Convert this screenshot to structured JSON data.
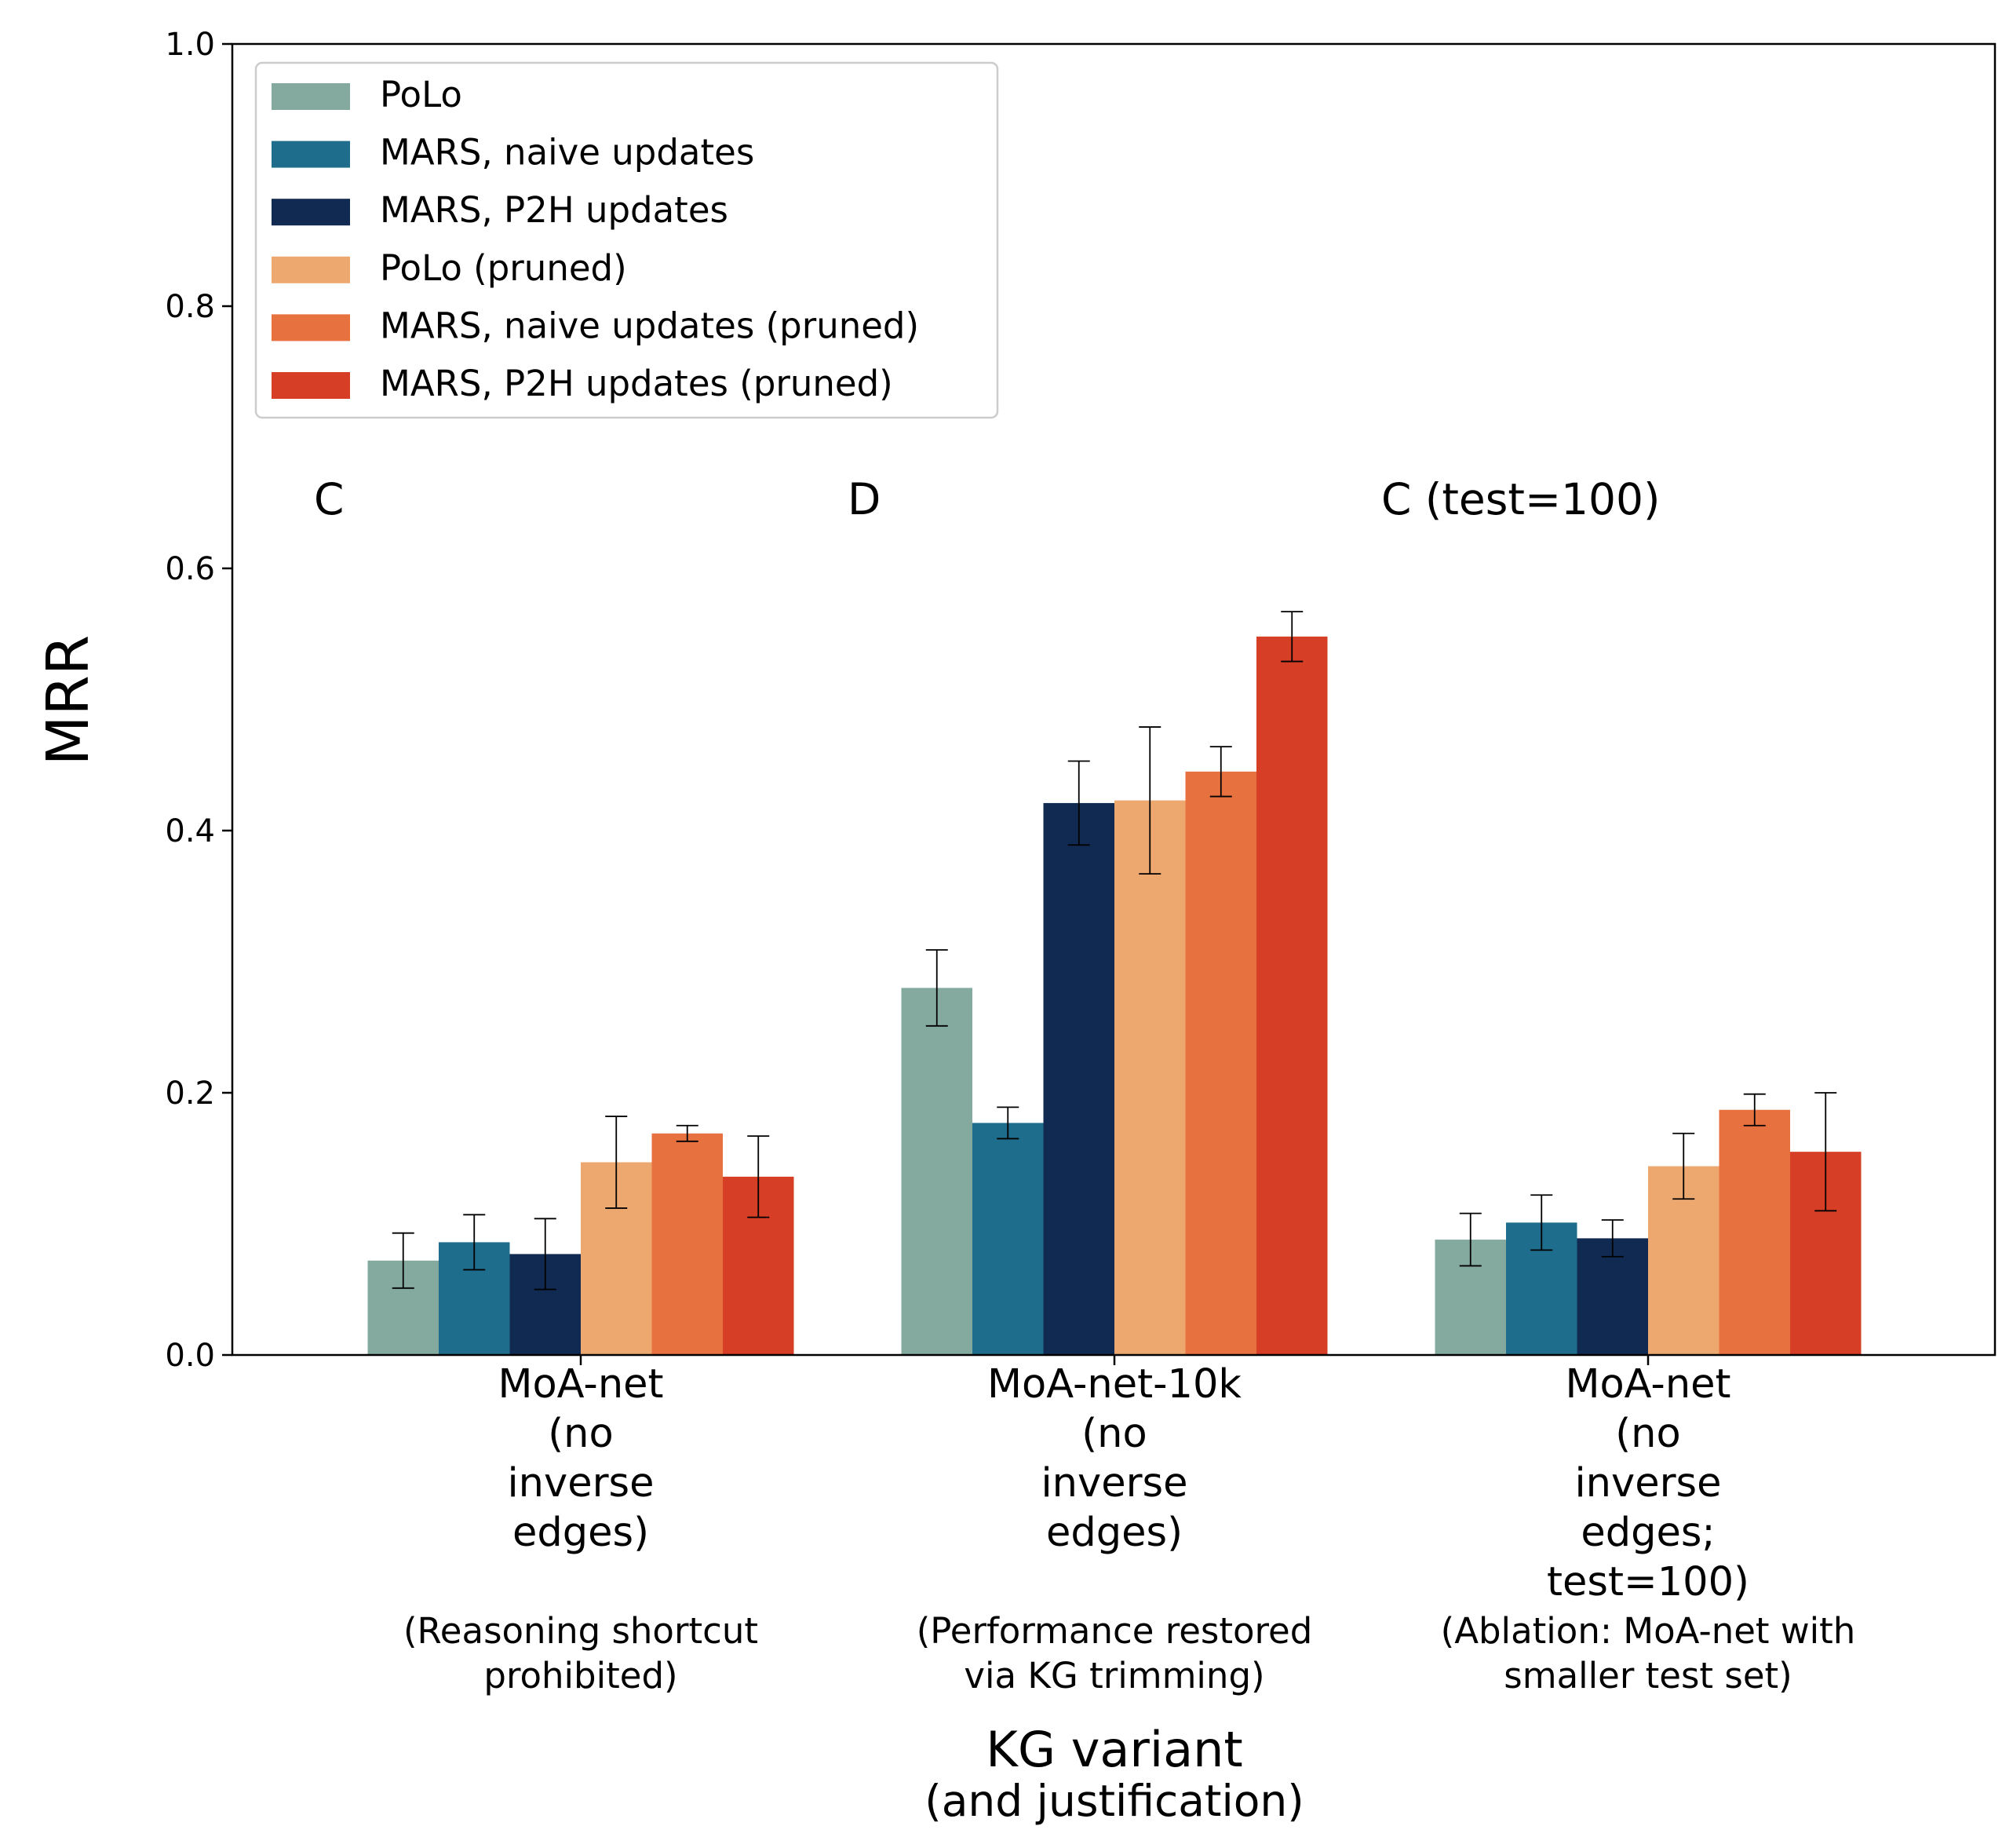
{
  "chart_data": {
    "type": "bar",
    "ylabel": "MRR",
    "xlabel": "KG variant",
    "xlabel_sub": "(and justification)",
    "ylim": [
      0,
      1
    ],
    "yticks": [
      "0.0",
      "0.2",
      "0.4",
      "0.6",
      "0.8",
      "1.0"
    ],
    "legend_position": "top-left",
    "categories": [
      {
        "label_lines": [
          "MoA-net",
          "(no",
          "inverse",
          "edges)"
        ],
        "note_lines": [
          "(Reasoning shortcut",
          "prohibited)"
        ],
        "tag": "C"
      },
      {
        "label_lines": [
          "MoA-net-10k",
          "(no",
          "inverse",
          "edges)"
        ],
        "note_lines": [
          "(Performance restored",
          "via KG trimming)"
        ],
        "tag": "D"
      },
      {
        "label_lines": [
          "MoA-net",
          "(no",
          "inverse",
          "edges;",
          "test=100)"
        ],
        "note_lines": [
          "(Ablation: MoA-net with",
          "smaller test set)"
        ],
        "tag": "C (test=100)"
      }
    ],
    "series": [
      {
        "name": "PoLo",
        "color": "#84aaa0",
        "values": [
          0.072,
          0.28,
          0.088
        ],
        "errors": [
          0.021,
          0.029,
          0.02
        ]
      },
      {
        "name": "MARS, naive updates",
        "color": "#1f6d8c",
        "values": [
          0.086,
          0.177,
          0.101
        ],
        "errors": [
          0.021,
          0.012,
          0.021
        ]
      },
      {
        "name": "MARS, P2H updates",
        "color": "#102a52",
        "values": [
          0.077,
          0.421,
          0.089
        ],
        "errors": [
          0.027,
          0.032,
          0.014
        ]
      },
      {
        "name": "PoLo (pruned)",
        "color": "#eda870",
        "values": [
          0.147,
          0.423,
          0.144
        ],
        "errors": [
          0.035,
          0.056,
          0.025
        ]
      },
      {
        "name": "MARS, naive updates (pruned)",
        "color": "#e8723f",
        "values": [
          0.169,
          0.445,
          0.187
        ],
        "errors": [
          0.006,
          0.019,
          0.012
        ]
      },
      {
        "name": "MARS, P2H updates (pruned)",
        "color": "#d63e26",
        "values": [
          0.136,
          0.548,
          0.155
        ],
        "errors": [
          0.031,
          0.019,
          0.045
        ]
      }
    ]
  }
}
